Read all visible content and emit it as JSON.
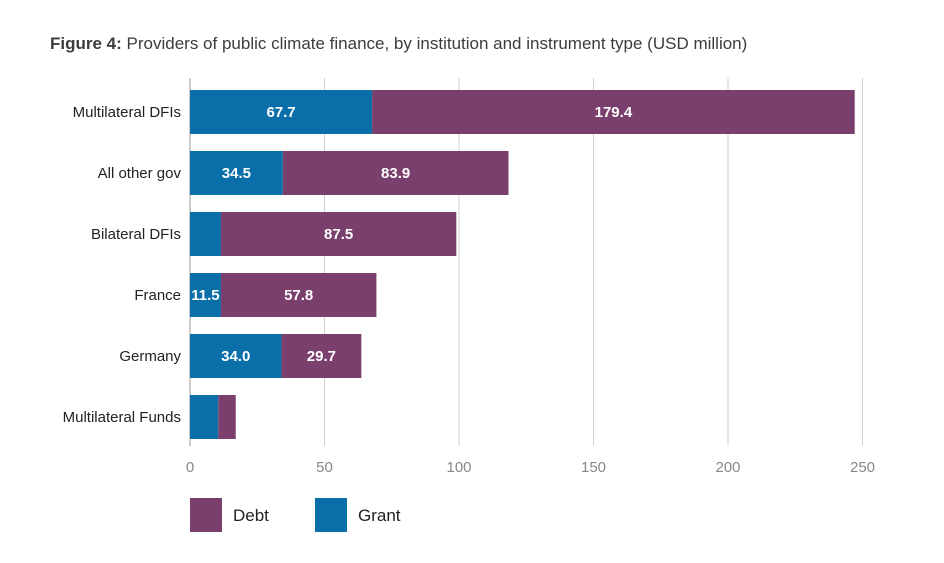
{
  "title": {
    "lead": "Figure 4:",
    "rest": "Providers of public climate finance, by institution and instrument type (USD million)"
  },
  "chart_data": {
    "type": "bar",
    "orientation": "horizontal",
    "stacked": true,
    "categories": [
      "Multilateral DFIs",
      "All other gov",
      "Bilateral DFIs",
      "France",
      "Germany",
      "Multilateral Funds"
    ],
    "series": [
      {
        "name": "Grant",
        "color": "#0a6ea8",
        "values": [
          67.7,
          34.5,
          11.5,
          11.5,
          34.0,
          10.5
        ],
        "labels": [
          "67.7",
          "34.5",
          "",
          "11.5",
          "34.0",
          ""
        ]
      },
      {
        "name": "Debt",
        "color": "#7b3f6e",
        "values": [
          179.4,
          83.9,
          87.5,
          57.8,
          29.7,
          6.5
        ],
        "labels": [
          "179.4",
          "83.9",
          "87.5",
          "57.8",
          "29.7",
          ""
        ]
      }
    ],
    "xlim": [
      0,
      250
    ],
    "xticks": [
      "0",
      "50",
      "100",
      "150",
      "200",
      "250"
    ],
    "grid": "vertical",
    "legend": {
      "placement": "bottom-left",
      "order": [
        "Debt",
        "Grant"
      ]
    }
  }
}
